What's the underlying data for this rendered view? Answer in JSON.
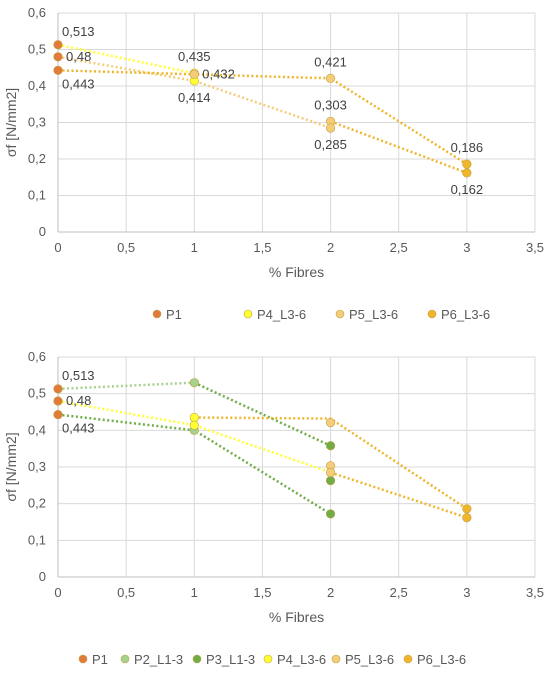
{
  "chart_data": [
    {
      "type": "scatter",
      "xlabel": "% Fibres",
      "ylabel": "σf [N/mm2]",
      "xlim": [
        0,
        3.5
      ],
      "ylim": [
        0,
        0.6
      ],
      "xticks": [
        "0",
        "0,5",
        "1",
        "1,5",
        "2",
        "2,5",
        "3",
        "3,5"
      ],
      "yticks": [
        "0",
        "0,1",
        "0,2",
        "0,3",
        "0,4",
        "0,5",
        "0,6"
      ],
      "grid": true,
      "legend_position": "bottom",
      "series": [
        {
          "name": "P1",
          "color": "#e07b39",
          "points": [
            {
              "x": 0,
              "y": 0.513
            },
            {
              "x": 0,
              "y": 0.48
            },
            {
              "x": 0,
              "y": 0.443
            }
          ],
          "trend": null
        },
        {
          "name": "P4_L3-6",
          "color": "#ffff33",
          "points": [
            {
              "x": 1,
              "y": 0.435
            },
            {
              "x": 1,
              "y": 0.414
            }
          ],
          "trend": [
            [
              0,
              0.513
            ],
            [
              1,
              0.435
            ]
          ]
        },
        {
          "name": "P5_L3-6",
          "color": "#f5cc7a",
          "points": [
            {
              "x": 1,
              "y": 0.432
            },
            {
              "x": 2,
              "y": 0.421
            },
            {
              "x": 2,
              "y": 0.303
            },
            {
              "x": 2,
              "y": 0.285
            }
          ],
          "trend": [
            [
              0,
              0.48
            ],
            [
              1,
              0.414
            ],
            [
              2,
              0.285
            ]
          ]
        },
        {
          "name": "P6_L3-6",
          "color": "#f0b62b",
          "points": [
            {
              "x": 3,
              "y": 0.186
            },
            {
              "x": 3,
              "y": 0.162
            }
          ],
          "trend": [
            [
              0,
              0.443
            ],
            [
              1,
              0.432
            ],
            [
              2,
              0.421
            ],
            [
              3,
              0.186
            ]
          ],
          "trend2": [
            [
              2,
              0.303
            ],
            [
              3,
              0.162
            ]
          ]
        }
      ],
      "annotations": [
        {
          "text": "0,513",
          "x": 0,
          "y": 0.513,
          "pos": "above-right"
        },
        {
          "text": "0,48",
          "x": 0,
          "y": 0.48,
          "pos": "right"
        },
        {
          "text": "0,443",
          "x": 0,
          "y": 0.443,
          "pos": "below-right"
        },
        {
          "text": "0,435",
          "x": 1,
          "y": 0.435,
          "pos": "above"
        },
        {
          "text": "0,432",
          "x": 1,
          "y": 0.432,
          "pos": "right"
        },
        {
          "text": "0,414",
          "x": 1,
          "y": 0.414,
          "pos": "below"
        },
        {
          "text": "0,421",
          "x": 2,
          "y": 0.421,
          "pos": "above"
        },
        {
          "text": "0,303",
          "x": 2,
          "y": 0.303,
          "pos": "above"
        },
        {
          "text": "0,285",
          "x": 2,
          "y": 0.285,
          "pos": "below"
        },
        {
          "text": "0,186",
          "x": 3,
          "y": 0.186,
          "pos": "above"
        },
        {
          "text": "0,162",
          "x": 3,
          "y": 0.162,
          "pos": "below"
        }
      ]
    },
    {
      "type": "scatter",
      "xlabel": "% Fibres",
      "ylabel": "σf [N/mm2]",
      "xlim": [
        0,
        3.5
      ],
      "ylim": [
        0,
        0.6
      ],
      "xticks": [
        "0",
        "0,5",
        "1",
        "1,5",
        "2",
        "2,5",
        "3",
        "3,5"
      ],
      "yticks": [
        "0",
        "0,1",
        "0,2",
        "0,3",
        "0,4",
        "0,5",
        "0,6"
      ],
      "grid": true,
      "legend_position": "bottom",
      "series": [
        {
          "name": "P1",
          "color": "#e07b39",
          "points": [
            {
              "x": 0,
              "y": 0.513
            },
            {
              "x": 0,
              "y": 0.48
            },
            {
              "x": 0,
              "y": 0.443
            }
          ],
          "trend": null
        },
        {
          "name": "P2_L1-3",
          "color": "#a9d18e",
          "points": [
            {
              "x": 1,
              "y": 0.53
            },
            {
              "x": 1,
              "y": 0.4
            }
          ],
          "trend": [
            [
              0,
              0.513
            ],
            [
              1,
              0.53
            ]
          ]
        },
        {
          "name": "P3_L1-3",
          "color": "#70ad47",
          "points": [
            {
              "x": 2,
              "y": 0.358
            },
            {
              "x": 2,
              "y": 0.263
            },
            {
              "x": 2,
              "y": 0.172
            }
          ],
          "trend": [
            [
              1,
              0.53
            ],
            [
              2,
              0.358
            ]
          ],
          "trend2": [
            [
              0,
              0.443
            ],
            [
              1,
              0.4
            ],
            [
              2,
              0.172
            ]
          ]
        },
        {
          "name": "P4_L3-6",
          "color": "#ffff33",
          "points": [
            {
              "x": 1,
              "y": 0.435
            },
            {
              "x": 1,
              "y": 0.414
            }
          ],
          "trend": [
            [
              0,
              0.48
            ],
            [
              1,
              0.414
            ],
            [
              2,
              0.285
            ]
          ]
        },
        {
          "name": "P5_L3-6",
          "color": "#f5cc7a",
          "points": [
            {
              "x": 2,
              "y": 0.421
            },
            {
              "x": 2,
              "y": 0.303
            },
            {
              "x": 2,
              "y": 0.285
            }
          ],
          "trend": null
        },
        {
          "name": "P6_L3-6",
          "color": "#f0b62b",
          "points": [
            {
              "x": 3,
              "y": 0.186
            },
            {
              "x": 3,
              "y": 0.162
            }
          ],
          "trend": [
            [
              1,
              0.435
            ],
            [
              2,
              0.432
            ],
            [
              3,
              0.186
            ]
          ],
          "trend2": [
            [
              2,
              0.285
            ],
            [
              3,
              0.162
            ]
          ]
        }
      ],
      "annotations": [
        {
          "text": "0,513",
          "x": 0,
          "y": 0.513,
          "pos": "above-right"
        },
        {
          "text": "0,48",
          "x": 0,
          "y": 0.48,
          "pos": "right"
        },
        {
          "text": "0,443",
          "x": 0,
          "y": 0.443,
          "pos": "below-right"
        }
      ]
    }
  ]
}
